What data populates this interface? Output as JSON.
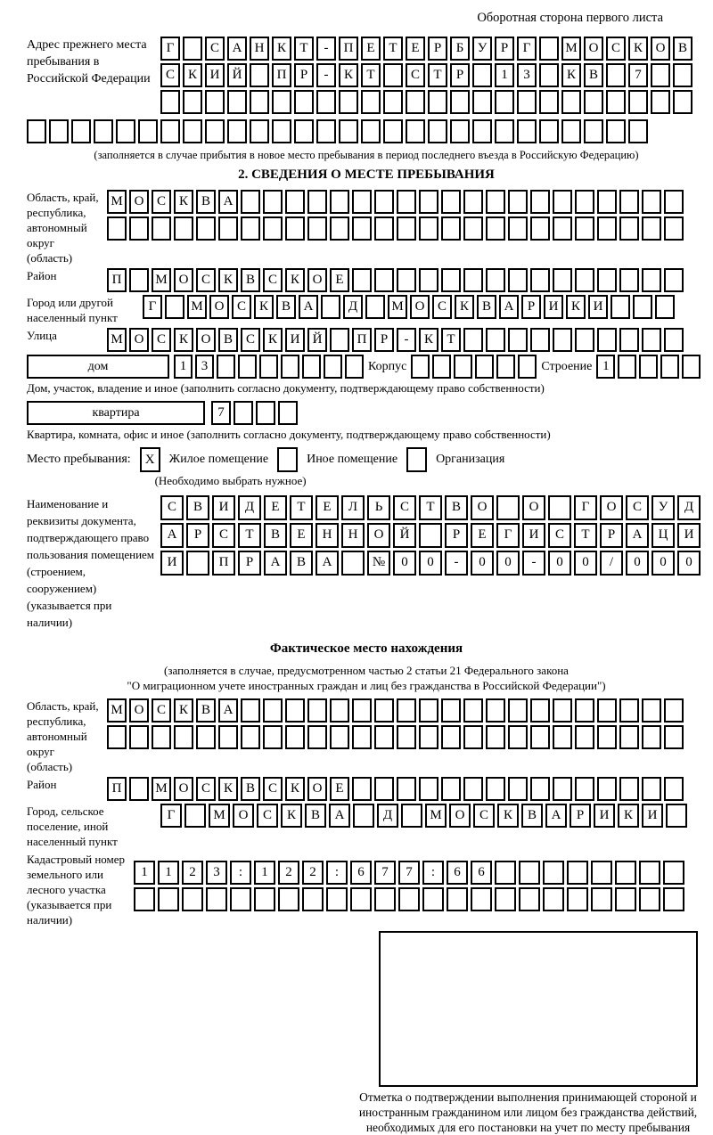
{
  "header": {
    "title": "Оборотная сторона первого листа"
  },
  "prev_address": {
    "label": "Адрес прежнего места пребывания в Российской Федерации",
    "row1": [
      "Г",
      "",
      "С",
      "А",
      "Н",
      "К",
      "Т",
      "-",
      "П",
      "Е",
      "Т",
      "Е",
      "Р",
      "Б",
      "У",
      "Р",
      "Г",
      "",
      "М",
      "О",
      "С",
      "К",
      "О",
      "В"
    ],
    "row2": [
      "С",
      "К",
      "И",
      "Й",
      "",
      "П",
      "Р",
      "-",
      "К",
      "Т",
      "",
      "С",
      "Т",
      "Р",
      "",
      "1",
      "3",
      "",
      "К",
      "В",
      "",
      "7",
      "",
      ""
    ],
    "row3": [
      "",
      "",
      "",
      "",
      "",
      "",
      "",
      "",
      "",
      "",
      "",
      "",
      "",
      "",
      "",
      "",
      "",
      "",
      "",
      "",
      "",
      "",
      "",
      ""
    ],
    "row4": [
      "",
      "",
      "",
      "",
      "",
      "",
      "",
      "",
      "",
      "",
      "",
      "",
      "",
      "",
      "",
      "",
      "",
      "",
      "",
      "",
      "",
      "",
      "",
      "",
      "",
      "",
      "",
      ""
    ],
    "note": "(заполняется в случае прибытия в новое место пребывания в период последнего въезда в Российскую Федерацию)"
  },
  "section2": {
    "title": "2. СВЕДЕНИЯ О МЕСТЕ ПРЕБЫВАНИЯ",
    "region": {
      "label": "Область, край, республика, автономный округ (область)",
      "row1": [
        "М",
        "О",
        "С",
        "К",
        "В",
        "А",
        "",
        "",
        "",
        "",
        "",
        "",
        "",
        "",
        "",
        "",
        "",
        "",
        "",
        "",
        "",
        "",
        "",
        "",
        "",
        ""
      ],
      "row2": [
        "",
        "",
        "",
        "",
        "",
        "",
        "",
        "",
        "",
        "",
        "",
        "",
        "",
        "",
        "",
        "",
        "",
        "",
        "",
        "",
        "",
        "",
        "",
        "",
        "",
        ""
      ]
    },
    "district": {
      "label": "Район",
      "row": [
        "П",
        "",
        "М",
        "О",
        "С",
        "К",
        "В",
        "С",
        "К",
        "О",
        "Е",
        "",
        "",
        "",
        "",
        "",
        "",
        "",
        "",
        "",
        "",
        "",
        "",
        "",
        "",
        ""
      ]
    },
    "city": {
      "label": "Город или другой населенный пункт",
      "row": [
        "Г",
        "",
        "М",
        "О",
        "С",
        "К",
        "В",
        "А",
        "",
        "Д",
        "",
        "М",
        "О",
        "С",
        "К",
        "В",
        "А",
        "Р",
        "И",
        "К",
        "И",
        "",
        "",
        ""
      ]
    },
    "street": {
      "label": "Улица",
      "row": [
        "М",
        "О",
        "С",
        "К",
        "О",
        "В",
        "С",
        "К",
        "И",
        "Й",
        "",
        "П",
        "Р",
        "-",
        "К",
        "Т",
        "",
        "",
        "",
        "",
        "",
        "",
        "",
        "",
        "",
        ""
      ]
    },
    "house": {
      "label": "дом",
      "cells": [
        "1",
        "3",
        "",
        "",
        "",
        "",
        "",
        "",
        ""
      ],
      "korpus_label": "Корпус",
      "korpus_cells": [
        "",
        "",
        "",
        "",
        "",
        ""
      ],
      "stroenie_label": "Строение",
      "stroenie_cells": [
        "1",
        "",
        "",
        "",
        ""
      ]
    },
    "house_caption": "Дом, участок, владение и иное (заполнить согласно документу, подтверждающему право собственности)",
    "apartment": {
      "label": "квартира",
      "cells": [
        "7",
        "",
        "",
        ""
      ]
    },
    "apartment_caption": "Квартира, комната, офис и иное (заполнить согласно документу, подтверждающему право собственности)",
    "stay_type": {
      "label": "Место пребывания:",
      "options": [
        {
          "label": "Жилое помещение",
          "mark": "X"
        },
        {
          "label": "Иное помещение",
          "mark": ""
        },
        {
          "label": "Организация",
          "mark": ""
        }
      ],
      "hint": "(Необходимо выбрать нужное)"
    },
    "document": {
      "label": "Наименование и реквизиты документа, подтверждающего право пользования помещением (строением, сооружением) (указывается при наличии)",
      "row1": [
        "С",
        "В",
        "И",
        "Д",
        "Е",
        "Т",
        "Е",
        "Л",
        "Ь",
        "С",
        "Т",
        "В",
        "О",
        "",
        "О",
        "",
        "Г",
        "О",
        "С",
        "У",
        "Д"
      ],
      "row2": [
        "А",
        "Р",
        "С",
        "Т",
        "В",
        "Е",
        "Н",
        "Н",
        "О",
        "Й",
        "",
        "Р",
        "Е",
        "Г",
        "И",
        "С",
        "Т",
        "Р",
        "А",
        "Ц",
        "И"
      ],
      "row3": [
        "И",
        "",
        "П",
        "Р",
        "А",
        "В",
        "А",
        "",
        "№",
        "0",
        "0",
        "-",
        "0",
        "0",
        "-",
        "0",
        "0",
        "/",
        "0",
        "0",
        "0"
      ]
    }
  },
  "fact": {
    "title": "Фактическое место нахождения",
    "note1": "(заполняется в случае, предусмотренном частью 2 статьи 21 Федерального закона",
    "note2": "\"О миграционном учете иностранных граждан и лиц без гражданства в Российской Федерации\")",
    "region": {
      "label": "Область, край, республика, автономный округ (область)",
      "row1": [
        "М",
        "О",
        "С",
        "К",
        "В",
        "А",
        "",
        "",
        "",
        "",
        "",
        "",
        "",
        "",
        "",
        "",
        "",
        "",
        "",
        "",
        "",
        "",
        "",
        "",
        "",
        ""
      ],
      "row2": [
        "",
        "",
        "",
        "",
        "",
        "",
        "",
        "",
        "",
        "",
        "",
        "",
        "",
        "",
        "",
        "",
        "",
        "",
        "",
        "",
        "",
        "",
        "",
        "",
        "",
        ""
      ]
    },
    "district": {
      "label": "Район",
      "row": [
        "П",
        "",
        "М",
        "О",
        "С",
        "К",
        "В",
        "С",
        "К",
        "О",
        "Е",
        "",
        "",
        "",
        "",
        "",
        "",
        "",
        "",
        "",
        "",
        "",
        "",
        "",
        "",
        ""
      ]
    },
    "city": {
      "label": "Город, сельское поселение, иной населенный пункт",
      "row": [
        "Г",
        "",
        "М",
        "О",
        "С",
        "К",
        "В",
        "А",
        "",
        "Д",
        "",
        "М",
        "О",
        "С",
        "К",
        "В",
        "А",
        "Р",
        "И",
        "К",
        "И",
        ""
      ]
    },
    "cadastre": {
      "label": "Кадастровый номер земельного или лесного участка (указывается при наличии)",
      "row1": [
        "1",
        "1",
        "2",
        "3",
        ":",
        "1",
        "2",
        "2",
        ":",
        "6",
        "7",
        "7",
        ":",
        "6",
        "6",
        "",
        "",
        "",
        "",
        "",
        "",
        "",
        ""
      ],
      "row2": [
        "",
        "",
        "",
        "",
        "",
        "",
        "",
        "",
        "",
        "",
        "",
        "",
        "",
        "",
        "",
        "",
        "",
        "",
        "",
        "",
        "",
        "",
        ""
      ]
    },
    "stamp_caption": "Отметка о подтверждении выполнения принимающей стороной и иностранным гражданином или лицом без гражданства действий, необходимых для его постановки на учет по месту пребывания"
  }
}
